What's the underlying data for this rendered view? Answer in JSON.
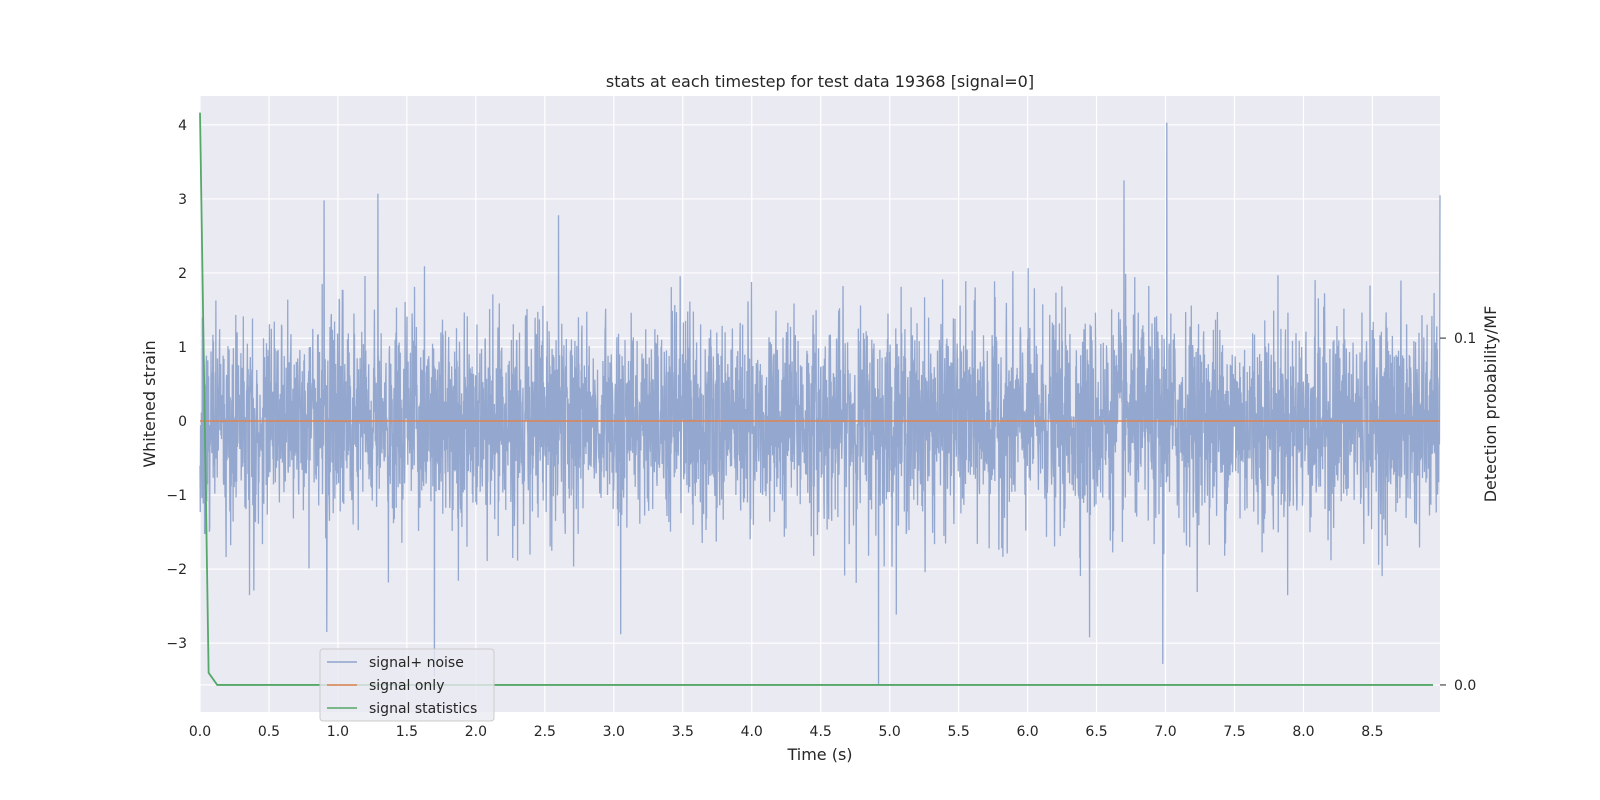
{
  "chart_data": {
    "type": "line",
    "title": "stats at each timestep for test data 19368 [signal=0]",
    "xlabel": "Time (s)",
    "ylabel": "Whitened strain",
    "y2label": "Detection probability/MF",
    "xlim": [
      0.0,
      8.99
    ],
    "ylim": [
      -3.93,
      4.39
    ],
    "y2lim": [
      -0.0078,
      0.1698
    ],
    "x_ticks": [
      0.0,
      0.5,
      1.0,
      1.5,
      2.0,
      2.5,
      3.0,
      3.5,
      4.0,
      4.5,
      5.0,
      5.5,
      6.0,
      6.5,
      7.0,
      7.5,
      8.0,
      8.5
    ],
    "x_tick_labels": [
      "0.0",
      "0.5",
      "1.0",
      "1.5",
      "2.0",
      "2.5",
      "3.0",
      "3.5",
      "4.0",
      "4.5",
      "5.0",
      "5.5",
      "6.0",
      "6.5",
      "7.0",
      "7.5",
      "8.0",
      "8.5"
    ],
    "y_ticks": [
      -3,
      -2,
      -1,
      0,
      1,
      2,
      3,
      4
    ],
    "y_tick_labels": [
      "−3",
      "−2",
      "−1",
      "0",
      "1",
      "2",
      "3",
      "4"
    ],
    "y2_ticks": [
      0.0,
      0.1
    ],
    "y2_tick_labels": [
      "0.0",
      "0.1"
    ],
    "grid": true,
    "legend_position": "lower-left",
    "series": [
      {
        "name": "signal+ noise",
        "axis": "left",
        "color": "#8fa3cb",
        "description_values": {
          "n_samples": 4608,
          "typical_envelope": [
            -1.6,
            1.6
          ],
          "peaks": [
            {
              "x": 0.9,
              "y": 2.98
            },
            {
              "x": 1.29,
              "y": 3.07
            },
            {
              "x": 2.6,
              "y": 2.78
            },
            {
              "x": 6.7,
              "y": 3.25
            },
            {
              "x": 7.01,
              "y": 4.03
            },
            {
              "x": 8.99,
              "y": 3.05
            }
          ],
          "troughs": [
            {
              "x": 0.92,
              "y": -2.85
            },
            {
              "x": 1.7,
              "y": -3.45
            },
            {
              "x": 4.92,
              "y": -3.55
            },
            {
              "x": 6.98,
              "y": -3.28
            },
            {
              "x": 6.45,
              "y": -2.92
            },
            {
              "x": 3.05,
              "y": -2.88
            }
          ]
        }
      },
      {
        "name": "signal only",
        "axis": "left",
        "color": "#dd8452",
        "x": [
          0.0,
          8.99
        ],
        "y": [
          0.0,
          0.0
        ]
      },
      {
        "name": "signal statistics",
        "axis": "right",
        "color": "#55a868",
        "x": [
          0.0,
          0.0625,
          0.125,
          0.25,
          1.0,
          2.0,
          4.0,
          6.0,
          8.0,
          8.94
        ],
        "y": [
          0.165,
          0.0035,
          0.0,
          0.0,
          0.0,
          0.0,
          0.0,
          0.0,
          0.0,
          0.0
        ]
      }
    ],
    "legend_entries": [
      "signal+ noise",
      "signal only",
      "signal statistics"
    ]
  }
}
